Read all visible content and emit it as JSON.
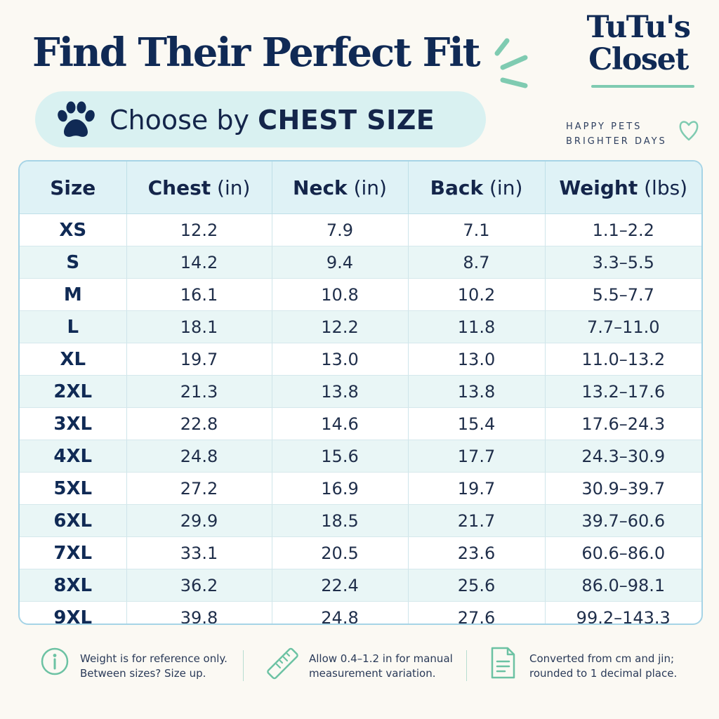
{
  "header": {
    "title": "Find Their Perfect Fit",
    "subtitle_prefix": "Choose by ",
    "subtitle_emphasis": "CHEST SIZE"
  },
  "brand": {
    "line1": "TuTu's",
    "line2": "Closet",
    "tagline_line1": "HAPPY PETS",
    "tagline_line2": "BRIGHTER DAYS"
  },
  "colors": {
    "navy": "#102a55",
    "mint": "#7fcbb1",
    "pill_bg": "#d9f1f1",
    "header_bg": "#dff2f6",
    "row_alt_bg": "#e9f6f6",
    "border": "#a6d4e6"
  },
  "icons": {
    "pill": "paw-icon",
    "brand_accent": "heart-icon",
    "title_accent": "sparkle-lines-icon",
    "note1": "info-icon",
    "note2": "ruler-icon",
    "note3": "document-icon"
  },
  "table": {
    "columns": [
      {
        "name": "Size",
        "unit": ""
      },
      {
        "name": "Chest",
        "unit": " (in)"
      },
      {
        "name": "Neck",
        "unit": " (in)"
      },
      {
        "name": "Back",
        "unit": " (in)"
      },
      {
        "name": "Weight",
        "unit": " (lbs)"
      }
    ],
    "rows": [
      [
        "XS",
        "12.2",
        "7.9",
        "7.1",
        "1.1–2.2"
      ],
      [
        "S",
        "14.2",
        "9.4",
        "8.7",
        "3.3–5.5"
      ],
      [
        "M",
        "16.1",
        "10.8",
        "10.2",
        "5.5–7.7"
      ],
      [
        "L",
        "18.1",
        "12.2",
        "11.8",
        "7.7–11.0"
      ],
      [
        "XL",
        "19.7",
        "13.0",
        "13.0",
        "11.0–13.2"
      ],
      [
        "2XL",
        "21.3",
        "13.8",
        "13.8",
        "13.2–17.6"
      ],
      [
        "3XL",
        "22.8",
        "14.6",
        "15.4",
        "17.6–24.3"
      ],
      [
        "4XL",
        "24.8",
        "15.6",
        "17.7",
        "24.3–30.9"
      ],
      [
        "5XL",
        "27.2",
        "16.9",
        "19.7",
        "30.9–39.7"
      ],
      [
        "6XL",
        "29.9",
        "18.5",
        "21.7",
        "39.7–60.6"
      ],
      [
        "7XL",
        "33.1",
        "20.5",
        "23.6",
        "60.6–86.0"
      ],
      [
        "8XL",
        "36.2",
        "22.4",
        "25.6",
        "86.0–98.1"
      ],
      [
        "9XL",
        "39.8",
        "24.8",
        "27.6",
        "99.2–143.3"
      ]
    ]
  },
  "notes": [
    {
      "line1": "Weight is for reference only.",
      "line2": "Between sizes? Size up."
    },
    {
      "line1": "Allow 0.4–1.2 in for manual",
      "line2": "measurement variation."
    },
    {
      "line1": "Converted from cm and jin;",
      "line2": "rounded to 1 decimal place."
    }
  ]
}
